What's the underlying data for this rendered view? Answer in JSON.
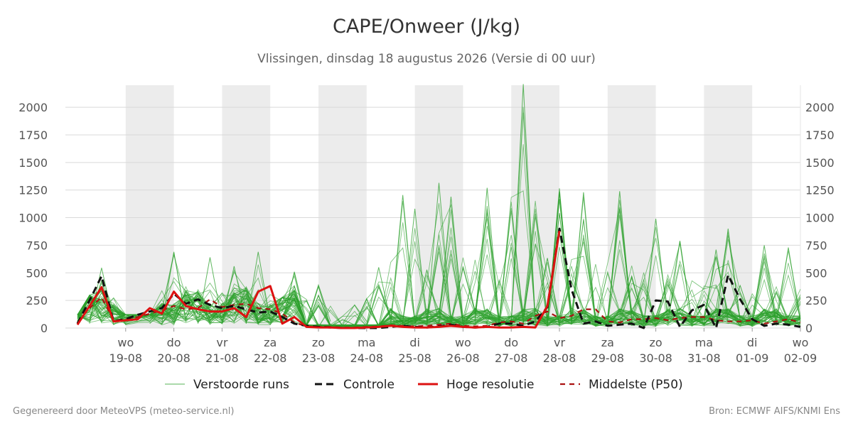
{
  "title": "CAPE/Onweer (J/kg)",
  "subtitle": "Vlissingen, dinsdag 18 augustus 2026 (Versie di 00 uur)",
  "footer": {
    "left": "Gegenereerd door MeteoVPS (meteo-service.nl)",
    "right": "Bron: ECMWF AIFS/KNMI Ens"
  },
  "colors": {
    "ensemble": "#2ca02c",
    "control": "#111111",
    "high_res": "#dd1111",
    "median": "#aa1111",
    "weekend_band": "#ececec",
    "grid": "#d9d9d9"
  },
  "chart_data": {
    "type": "line",
    "title": "CAPE/Onweer (J/kg)",
    "unit": "J/kg",
    "x_unit": "days since 18-08 00 uur",
    "xlim": [
      0,
      15
    ],
    "ylim": [
      0,
      2200
    ],
    "yticks": [
      0,
      250,
      500,
      750,
      1000,
      1250,
      1500,
      1750,
      2000
    ],
    "grid": true,
    "legend_position": "bottom",
    "xticks": [
      {
        "x": 1,
        "day": "wo",
        "date": "19-08"
      },
      {
        "x": 2,
        "day": "do",
        "date": "20-08"
      },
      {
        "x": 3,
        "day": "vr",
        "date": "21-08"
      },
      {
        "x": 4,
        "day": "za",
        "date": "22-08"
      },
      {
        "x": 5,
        "day": "zo",
        "date": "23-08"
      },
      {
        "x": 6,
        "day": "ma",
        "date": "24-08"
      },
      {
        "x": 7,
        "day": "di",
        "date": "25-08"
      },
      {
        "x": 8,
        "day": "wo",
        "date": "26-08"
      },
      {
        "x": 9,
        "day": "do",
        "date": "27-08"
      },
      {
        "x": 10,
        "day": "vr",
        "date": "28-08"
      },
      {
        "x": 11,
        "day": "za",
        "date": "29-08"
      },
      {
        "x": 12,
        "day": "zo",
        "date": "30-08"
      },
      {
        "x": 13,
        "day": "ma",
        "date": "31-08"
      },
      {
        "x": 14,
        "day": "di",
        "date": "01-09"
      },
      {
        "x": 15,
        "day": "wo",
        "date": "02-09"
      }
    ],
    "shaded_bands": [
      [
        1,
        2
      ],
      [
        3,
        4
      ],
      [
        5,
        6
      ],
      [
        7,
        8
      ],
      [
        9,
        10
      ],
      [
        11,
        12
      ],
      [
        13,
        14
      ]
    ],
    "legend": [
      "Verstoorde runs",
      "Controle",
      "Hoge resolutie",
      "Middelste (P50)"
    ],
    "ensemble_members": 50,
    "ensemble_envelope_peaks": [
      {
        "x": 0.5,
        "y": 545
      },
      {
        "x": 1.75,
        "y": 150
      },
      {
        "x": 2,
        "y": 690
      },
      {
        "x": 2.75,
        "y": 640
      },
      {
        "x": 3.25,
        "y": 560
      },
      {
        "x": 3.75,
        "y": 690
      },
      {
        "x": 4.5,
        "y": 510
      },
      {
        "x": 5,
        "y": 390
      },
      {
        "x": 5.75,
        "y": 210
      },
      {
        "x": 6.25,
        "y": 550
      },
      {
        "x": 6.75,
        "y": 1205
      },
      {
        "x": 7,
        "y": 1080
      },
      {
        "x": 7.5,
        "y": 1315
      },
      {
        "x": 7.75,
        "y": 1190
      },
      {
        "x": 8.5,
        "y": 1270
      },
      {
        "x": 9.25,
        "y": 2210
      },
      {
        "x": 10,
        "y": 1265
      },
      {
        "x": 10.5,
        "y": 1230
      },
      {
        "x": 11.25,
        "y": 1240
      },
      {
        "x": 12,
        "y": 990
      },
      {
        "x": 12.5,
        "y": 790
      },
      {
        "x": 13.25,
        "y": 710
      },
      {
        "x": 13.5,
        "y": 900
      },
      {
        "x": 14.25,
        "y": 750
      },
      {
        "x": 14.75,
        "y": 730
      }
    ],
    "series": [
      {
        "name": "Controle",
        "x": [
          0,
          0.25,
          0.5,
          0.75,
          1,
          1.25,
          1.5,
          1.75,
          2,
          2.25,
          2.5,
          2.75,
          3,
          3.25,
          3.5,
          3.75,
          4,
          4.25,
          4.5,
          4.75,
          5,
          5.25,
          5.5,
          5.75,
          6,
          6.25,
          6.5,
          6.75,
          7,
          7.25,
          7.5,
          7.75,
          8,
          8.25,
          8.5,
          8.75,
          9,
          9.25,
          9.5,
          9.75,
          10,
          10.25,
          10.5,
          10.75,
          11,
          11.25,
          11.5,
          11.75,
          12,
          12.25,
          12.5,
          12.75,
          13,
          13.25,
          13.5,
          13.75,
          14,
          14.25,
          14.5,
          14.75,
          15
        ],
        "y": [
          40,
          250,
          470,
          60,
          80,
          120,
          150,
          180,
          310,
          220,
          260,
          210,
          180,
          200,
          170,
          140,
          150,
          100,
          40,
          20,
          10,
          5,
          0,
          0,
          0,
          0,
          10,
          20,
          10,
          5,
          15,
          30,
          10,
          5,
          10,
          40,
          40,
          20,
          60,
          190,
          900,
          350,
          40,
          60,
          20,
          30,
          40,
          0,
          250,
          240,
          10,
          160,
          210,
          0,
          480,
          260,
          80,
          20,
          40,
          30,
          10
        ]
      },
      {
        "name": "Hoge resolutie",
        "x": [
          0,
          0.25,
          0.5,
          0.75,
          1,
          1.25,
          1.5,
          1.75,
          2,
          2.25,
          2.5,
          2.75,
          3,
          3.25,
          3.5,
          3.75,
          4,
          4.25,
          4.5,
          4.75,
          5,
          5.25,
          5.5,
          5.75,
          6,
          6.25,
          6.5,
          6.75,
          7,
          7.25,
          7.5,
          7.75,
          8,
          8.25,
          8.5,
          8.75,
          9,
          9.25,
          9.5,
          9.75,
          10
        ],
        "y": [
          30,
          200,
          370,
          60,
          70,
          80,
          180,
          130,
          330,
          200,
          170,
          150,
          150,
          180,
          100,
          330,
          380,
          40,
          100,
          10,
          5,
          5,
          0,
          0,
          5,
          10,
          20,
          10,
          5,
          5,
          10,
          20,
          10,
          5,
          10,
          5,
          5,
          10,
          5,
          200,
          880
        ]
      },
      {
        "name": "Middelste (P50)",
        "x": [
          0,
          0.25,
          0.5,
          0.75,
          1,
          1.25,
          1.5,
          1.75,
          2,
          2.25,
          2.5,
          2.75,
          3,
          3.25,
          3.5,
          3.75,
          4,
          4.25,
          4.5,
          4.75,
          5,
          5.25,
          5.5,
          5.75,
          6,
          6.25,
          6.5,
          6.75,
          7,
          7.25,
          7.5,
          7.75,
          8,
          8.25,
          8.5,
          8.75,
          9,
          9.25,
          9.5,
          9.75,
          10,
          10.25,
          10.5,
          10.75,
          11,
          11.25,
          11.5,
          11.75,
          12,
          12.25,
          12.5,
          12.75,
          13,
          13.25,
          13.5,
          13.75,
          14,
          14.25,
          14.5,
          14.75,
          15
        ],
        "y": [
          50,
          180,
          280,
          70,
          80,
          100,
          130,
          160,
          200,
          170,
          180,
          260,
          190,
          210,
          220,
          180,
          170,
          130,
          50,
          15,
          10,
          10,
          5,
          5,
          10,
          15,
          25,
          20,
          15,
          20,
          30,
          40,
          20,
          15,
          20,
          50,
          60,
          40,
          110,
          150,
          90,
          110,
          170,
          170,
          60,
          50,
          80,
          80,
          90,
          70,
          90,
          100,
          100,
          70,
          60,
          60,
          70,
          40,
          60,
          80,
          50
        ]
      }
    ]
  }
}
